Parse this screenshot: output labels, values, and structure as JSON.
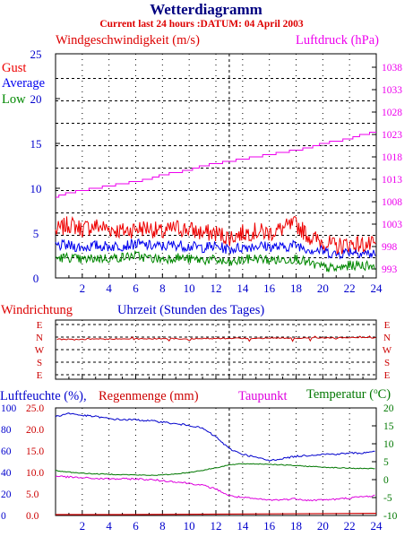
{
  "title": "Wetterdiagramm",
  "subtitle": "Current last 24 hours :DATUM: 04 April 2003",
  "colors": {
    "title": "#000080",
    "subtitle": "#dd0000",
    "gust": "#ee0000",
    "average": "#0000ee",
    "low": "#008800",
    "pressure": "#ee00ee",
    "wind_dir": "#cc0000",
    "humidity": "#0000cc",
    "rain": "#cc0000",
    "dew": "#dd00dd",
    "temp": "#007700",
    "axis": "#000000",
    "grid": "#000000"
  },
  "wind_panel": {
    "title_left": "Windgeschwindigkeit (m/s)",
    "title_right": "Luftdruck (hPa)",
    "legend": {
      "gust": "Gust",
      "average": "Average",
      "low": "Low"
    },
    "left_ticks": [
      "25",
      "20",
      "15",
      "10",
      "5",
      "0"
    ],
    "right_ticks": [
      "1038",
      "1033",
      "1028",
      "1023",
      "1018",
      "1013",
      "1008",
      "1003",
      "998",
      "993"
    ]
  },
  "dir_panel": {
    "title_left": "Windrichtung",
    "title_center": "Uhrzeit (Stunden des Tages)",
    "labels": [
      "E",
      "N",
      "W",
      "S",
      "E"
    ]
  },
  "humid_panel": {
    "title_humidity": "Luftfeuchte (%),",
    "title_rain": "Regenmenge (mm)",
    "title_dew": "Taupunkt",
    "title_temp": "Temperatur (",
    "title_temp_unit": "C)",
    "title_temp_degree": "o",
    "left_outer_ticks": [
      "100",
      "80",
      "60",
      "40",
      "20",
      "0"
    ],
    "left_inner_ticks": [
      "25.0",
      "20.0",
      "15.0",
      "10.0",
      "5.0",
      "0.0"
    ],
    "right_ticks": [
      "20",
      "15",
      "10",
      "5",
      "0",
      "-5",
      "-10"
    ]
  },
  "x_ticks": [
    "2",
    "4",
    "6",
    "8",
    "10",
    "12",
    "14",
    "16",
    "18",
    "20",
    "22",
    "24"
  ],
  "chart_data": [
    {
      "type": "line",
      "title": "Windgeschwindigkeit (m/s)",
      "x_label": "Uhrzeit (Stunden des Tages)",
      "xlim": [
        0,
        24
      ],
      "ylim": [
        0,
        25
      ],
      "y2_label": "Luftdruck (hPa)",
      "y2lim": [
        991,
        1041
      ],
      "series": [
        {
          "name": "Gust",
          "axis": "left",
          "x": [
            0,
            1,
            2,
            3,
            4,
            5,
            6,
            7,
            8,
            9,
            10,
            11,
            12,
            13,
            14,
            15,
            16,
            17,
            18,
            19,
            20,
            21,
            22,
            23,
            24
          ],
          "values": [
            5.2,
            6,
            5.5,
            5.8,
            5.5,
            5.2,
            5.5,
            5.6,
            5,
            5.6,
            5.4,
            5,
            5,
            4.5,
            5,
            5.2,
            5,
            5.5,
            6,
            4.6,
            4,
            3.5,
            3.8,
            3.7,
            3.6
          ]
        },
        {
          "name": "Average",
          "axis": "left",
          "x": [
            0,
            1,
            2,
            3,
            4,
            5,
            6,
            7,
            8,
            9,
            10,
            11,
            12,
            13,
            14,
            15,
            16,
            17,
            18,
            19,
            20,
            21,
            22,
            23,
            24
          ],
          "values": [
            3.6,
            3.6,
            3.4,
            3.6,
            3.5,
            3.6,
            3.8,
            3.6,
            3.5,
            3.7,
            3.5,
            3.4,
            3.5,
            3.2,
            3.4,
            3.6,
            3.5,
            3.4,
            3.7,
            3.2,
            3,
            2.6,
            3,
            2.8,
            2.6
          ]
        },
        {
          "name": "Low",
          "axis": "left",
          "x": [
            0,
            1,
            2,
            3,
            4,
            5,
            6,
            7,
            8,
            9,
            10,
            11,
            12,
            13,
            14,
            15,
            16,
            17,
            18,
            19,
            20,
            21,
            22,
            23,
            24
          ],
          "values": [
            2.2,
            2.3,
            2,
            2.2,
            2.2,
            2.3,
            2.5,
            2.2,
            2.1,
            2.3,
            2.1,
            2,
            2,
            1.6,
            2,
            2.2,
            2,
            2,
            2.2,
            1.6,
            1.2,
            1,
            1.4,
            1.4,
            1.4
          ]
        },
        {
          "name": "Luftdruck",
          "axis": "right",
          "x": [
            0,
            1,
            2,
            3,
            4,
            5,
            6,
            7,
            8,
            9,
            10,
            11,
            12,
            13,
            14,
            15,
            16,
            17,
            18,
            19,
            20,
            21,
            22,
            23,
            24
          ],
          "values": [
            1009,
            1010,
            1010.5,
            1011,
            1011.5,
            1012,
            1012.5,
            1013,
            1014,
            1014.5,
            1015,
            1016,
            1016.5,
            1017,
            1017.5,
            1018,
            1018.5,
            1019,
            1019.5,
            1020,
            1021,
            1021.5,
            1022,
            1023,
            1023.5
          ]
        }
      ]
    },
    {
      "type": "line",
      "title": "Windrichtung",
      "xlim": [
        0,
        24
      ],
      "y_categories": [
        "E",
        "N",
        "W",
        "S",
        "E"
      ],
      "series": [
        {
          "name": "Windrichtung",
          "x": [
            0,
            2,
            4,
            6,
            8,
            10,
            12,
            14,
            16,
            18,
            20,
            22,
            24
          ],
          "values": [
            "N",
            "N",
            "N",
            "N",
            "N",
            "N",
            "N",
            "N",
            "N",
            "N",
            "N",
            "N",
            "N"
          ]
        }
      ]
    },
    {
      "type": "line",
      "xlim": [
        0,
        24
      ],
      "ylim": [
        0,
        100
      ],
      "y_inner_lim": [
        0,
        25
      ],
      "y2lim": [
        -10,
        20
      ],
      "series": [
        {
          "name": "Luftfeuchte (%)",
          "axis": "left",
          "x": [
            0,
            1,
            2,
            3,
            4,
            5,
            6,
            7,
            8,
            9,
            10,
            11,
            12,
            13,
            14,
            15,
            16,
            17,
            18,
            19,
            20,
            21,
            22,
            23,
            24
          ],
          "values": [
            92,
            95,
            93,
            92,
            90,
            89,
            89,
            88,
            87,
            85,
            84,
            81,
            73,
            62,
            57,
            54,
            51,
            53,
            55,
            56,
            57,
            57,
            58,
            58,
            60
          ]
        },
        {
          "name": "Regenmenge (mm)",
          "axis": "left_inner",
          "x": [
            0,
            5,
            24
          ],
          "values": [
            0,
            0,
            0.3
          ]
        },
        {
          "name": "Taupunkt",
          "axis": "right",
          "x": [
            0,
            1,
            2,
            3,
            4,
            5,
            6,
            7,
            8,
            9,
            10,
            11,
            12,
            13,
            14,
            15,
            16,
            17,
            18,
            19,
            20,
            21,
            22,
            23,
            24
          ],
          "values": [
            1,
            0.7,
            0.5,
            0.3,
            0.2,
            0.2,
            0.2,
            0,
            -0.3,
            -0.6,
            -1,
            -1.6,
            -2.6,
            -4.5,
            -5,
            -5.4,
            -5.7,
            -5.6,
            -5.3,
            -5.8,
            -5.6,
            -5.5,
            -5.1,
            -4.8,
            -4.4
          ]
        },
        {
          "name": "Temperatur",
          "axis": "right",
          "x": [
            0,
            1,
            2,
            3,
            4,
            5,
            6,
            7,
            8,
            9,
            10,
            11,
            12,
            13,
            14,
            15,
            16,
            17,
            18,
            19,
            20,
            21,
            22,
            23,
            24
          ],
          "values": [
            2.5,
            2.1,
            1.8,
            1.6,
            1.5,
            1.4,
            1.3,
            1.2,
            1.3,
            1.6,
            2,
            2.6,
            3.3,
            4.1,
            4.4,
            4.4,
            4.3,
            4.1,
            3.9,
            3.7,
            3.5,
            3.3,
            3.2,
            3.1,
            3.1
          ]
        }
      ]
    }
  ]
}
